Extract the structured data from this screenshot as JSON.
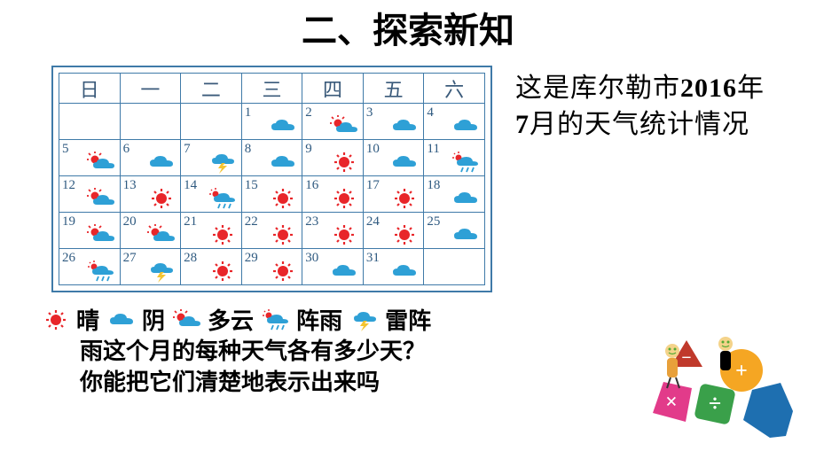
{
  "title": "二、探索新知",
  "sideText": {
    "pre": "这是库尔勒市",
    "year": "2016",
    "mid": "年",
    "month": "7",
    "post": "月的天气统计情况"
  },
  "weekHeaders": [
    "日",
    "一",
    "二",
    "三",
    "四",
    "五",
    "六"
  ],
  "icons": {
    "sunny": "sunny",
    "cloud": "cloud",
    "partly": "partly",
    "shower": "shower",
    "thunder": "thunder"
  },
  "calendar": [
    [
      null,
      null,
      null,
      {
        "d": 1,
        "w": "cloud"
      },
      {
        "d": 2,
        "w": "partly"
      },
      {
        "d": 3,
        "w": "cloud"
      },
      {
        "d": 4,
        "w": "cloud"
      }
    ],
    [
      {
        "d": 5,
        "w": "partly"
      },
      {
        "d": 6,
        "w": "cloud"
      },
      {
        "d": 7,
        "w": "thunder"
      },
      {
        "d": 8,
        "w": "cloud"
      },
      {
        "d": 9,
        "w": "sunny"
      },
      {
        "d": 10,
        "w": "cloud"
      },
      {
        "d": 11,
        "w": "shower"
      }
    ],
    [
      {
        "d": 12,
        "w": "partly"
      },
      {
        "d": 13,
        "w": "sunny"
      },
      {
        "d": 14,
        "w": "shower"
      },
      {
        "d": 15,
        "w": "sunny"
      },
      {
        "d": 16,
        "w": "sunny"
      },
      {
        "d": 17,
        "w": "sunny"
      },
      {
        "d": 18,
        "w": "cloud"
      }
    ],
    [
      {
        "d": 19,
        "w": "partly"
      },
      {
        "d": 20,
        "w": "partly"
      },
      {
        "d": 21,
        "w": "sunny"
      },
      {
        "d": 22,
        "w": "sunny"
      },
      {
        "d": 23,
        "w": "sunny"
      },
      {
        "d": 24,
        "w": "sunny"
      },
      {
        "d": 25,
        "w": "cloud"
      }
    ],
    [
      {
        "d": 26,
        "w": "shower"
      },
      {
        "d": 27,
        "w": "thunder"
      },
      {
        "d": 28,
        "w": "sunny"
      },
      {
        "d": 29,
        "w": "sunny"
      },
      {
        "d": 30,
        "w": "cloud"
      },
      {
        "d": 31,
        "w": "cloud"
      },
      null
    ]
  ],
  "legend": [
    {
      "icon": "sunny",
      "label": "晴"
    },
    {
      "icon": "cloud",
      "label": "阴"
    },
    {
      "icon": "partly",
      "label": "多云"
    },
    {
      "icon": "shower",
      "label": "阵雨"
    },
    {
      "icon": "thunder",
      "label": "雷阵"
    }
  ],
  "questions": {
    "q1pre": "雨",
    "q1": "这个月的每种天气各有多少天？",
    "q2": "你能把它们清楚地表示出来吗"
  },
  "colors": {
    "sun": "#e8262a",
    "cloud": "#2ea0d6",
    "thunder": "#f4c430",
    "border": "#3f7aa8"
  }
}
